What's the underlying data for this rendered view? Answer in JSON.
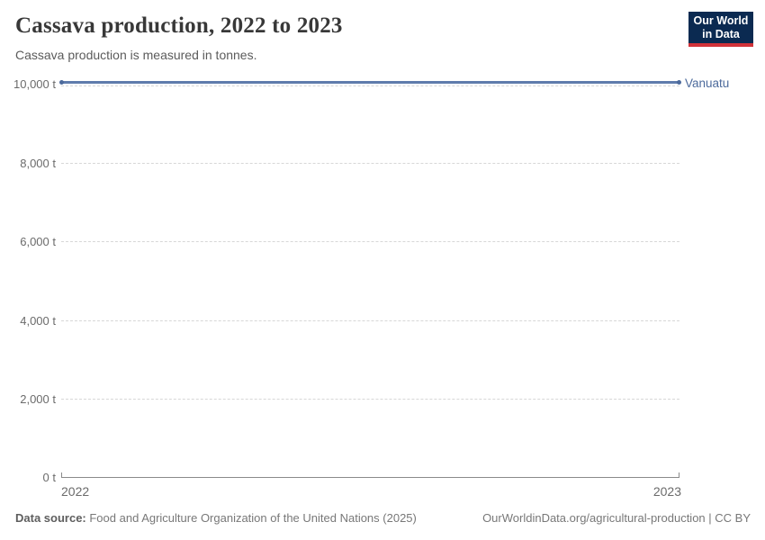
{
  "header": {
    "title": "Cassava production, 2022 to 2023",
    "subtitle": "Cassava production is measured in tonnes.",
    "logo": {
      "line1": "Our World",
      "line2": "in Data",
      "background_color": "#0b2a51",
      "accent_color": "#d13239"
    }
  },
  "chart_data": {
    "type": "line",
    "title": "Cassava production, 2022 to 2023",
    "subtitle": "Cassava production is measured in tonnes.",
    "unit": "tonnes",
    "x": [
      2022,
      2023
    ],
    "series": [
      {
        "name": "Vanuatu",
        "values": [
          10000,
          10000
        ],
        "color": "#4c6a9c"
      }
    ],
    "xlabel": "",
    "ylabel": "",
    "ylim": [
      0,
      10000
    ],
    "grid": true,
    "legend_position": "right-end-label",
    "end_label": "Vanuatu",
    "ytick_labels": [
      "0 t",
      "2,000 t",
      "4,000 t",
      "6,000 t",
      "8,000 t",
      "10,000 t"
    ],
    "xtick_labels": [
      "2022",
      "2023"
    ]
  },
  "footer": {
    "source_label": "Data source:",
    "source_text": " Food and Agriculture Organization of the United Nations (2025)",
    "right_text": "OurWorldinData.org/agricultural-production | CC BY"
  }
}
